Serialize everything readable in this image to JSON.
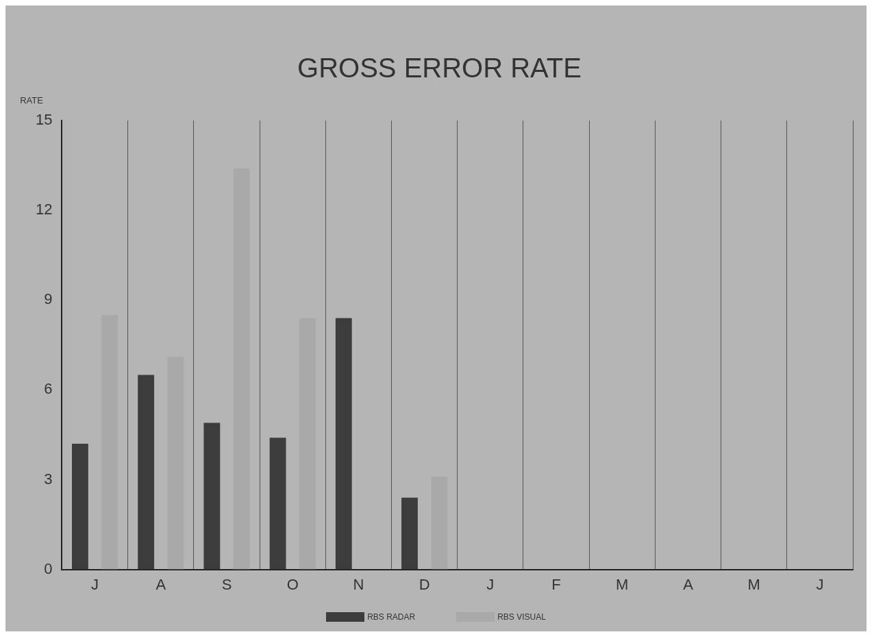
{
  "chart_data": {
    "type": "bar",
    "title": "GROSS ERROR RATE",
    "ylabel": "RATE",
    "categories": [
      "J",
      "A",
      "S",
      "O",
      "N",
      "D",
      "J",
      "F",
      "M",
      "A",
      "M",
      "J"
    ],
    "series": [
      {
        "name": "RBS RADAR",
        "color": "#3c3c3c",
        "values": [
          4.2,
          6.5,
          4.9,
          4.4,
          8.4,
          2.4,
          null,
          null,
          null,
          null,
          null,
          null
        ]
      },
      {
        "name": "RBS VISUAL",
        "color": "#a9a9a9",
        "values": [
          8.5,
          7.1,
          13.4,
          8.4,
          null,
          3.1,
          null,
          null,
          null,
          null,
          null,
          null
        ]
      }
    ],
    "ylim": [
      0,
      15
    ],
    "yticks": [
      0,
      3,
      6,
      9,
      12,
      15
    ],
    "grid": "x",
    "legend": "bottom"
  }
}
